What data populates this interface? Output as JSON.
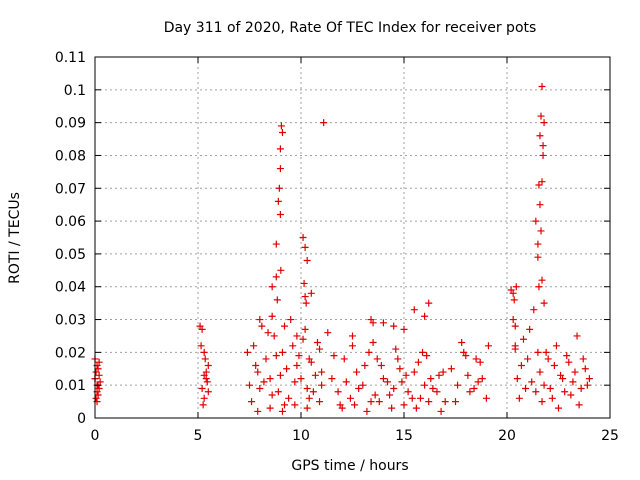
{
  "chart_data": {
    "type": "scatter",
    "title": "Day 311 of 2020, Rate Of TEC Index for receiver pots",
    "xlabel": "GPS time / hours",
    "ylabel": "ROTI / TECUs",
    "xlim": [
      0,
      25
    ],
    "ylim": [
      0,
      0.11
    ],
    "xticks": [
      0,
      5,
      10,
      15,
      20,
      25
    ],
    "xtick_labels": [
      "0",
      "5",
      "10",
      "15",
      "20",
      "25"
    ],
    "yticks": [
      0,
      0.01,
      0.02,
      0.03,
      0.04,
      0.05,
      0.06,
      0.07,
      0.08,
      0.09,
      0.1,
      0.11
    ],
    "ytick_labels": [
      "0",
      "0.01",
      "0.02",
      "0.03",
      "0.04",
      "0.05",
      "0.06",
      "0.07",
      "0.08",
      "0.09",
      "0.1",
      "0.11"
    ],
    "grid": true,
    "marker": "+",
    "color": "#e00000",
    "series": [
      {
        "name": "ROTI",
        "x": [
          0.0,
          0.1,
          0.2,
          0.05,
          0.15,
          0.25,
          0.0,
          0.1,
          0.2,
          0.05,
          0.15,
          0.1,
          0.2,
          0.0,
          0.1,
          0.15,
          5.1,
          5.2,
          5.3,
          5.4,
          5.5,
          5.2,
          5.3,
          5.4,
          5.15,
          5.35,
          5.45,
          5.25,
          5.3,
          5.5,
          7.5,
          7.7,
          7.9,
          8.1,
          8.3,
          8.5,
          8.7,
          8.9,
          9.1,
          9.3,
          9.5,
          9.7,
          9.9,
          10.1,
          10.3,
          10.5,
          10.7,
          10.9,
          7.6,
          7.8,
          8.0,
          8.2,
          8.4,
          8.6,
          8.8,
          9.0,
          9.2,
          9.4,
          9.6,
          9.8,
          10.0,
          10.2,
          10.4,
          10.6,
          10.8,
          11.0,
          7.4,
          8.0,
          8.6,
          9.2,
          9.8,
          10.4,
          11.0,
          7.9,
          8.5,
          9.1,
          9.7,
          10.3,
          10.9,
          8.6,
          8.8,
          8.9,
          9.0,
          9.0,
          9.05,
          9.1,
          8.95,
          9.0,
          9.02,
          8.85,
          8.8,
          10.1,
          10.2,
          10.3,
          10.2,
          10.15,
          10.25,
          10.5,
          11.1,
          11.3,
          11.5,
          11.8,
          12.1,
          12.4,
          12.7,
          13.0,
          13.3,
          13.6,
          13.9,
          14.2,
          14.5,
          14.8,
          15.1,
          15.4,
          15.7,
          16.0,
          16.3,
          16.6,
          16.9,
          11.6,
          11.9,
          12.2,
          12.5,
          12.8,
          13.1,
          13.4,
          13.7,
          14.0,
          14.3,
          14.6,
          14.9,
          15.2,
          15.5,
          15.8,
          16.1,
          16.4,
          16.7,
          17.0,
          12.0,
          12.6,
          13.2,
          13.8,
          14.4,
          15.0,
          15.6,
          16.2,
          16.8,
          13.5,
          14.7,
          15.9,
          13.4,
          13.5,
          14.5,
          15.0,
          15.5,
          16.0,
          16.2,
          14.0,
          12.5,
          17.3,
          17.6,
          17.9,
          18.2,
          18.5,
          18.8,
          19.1,
          17.5,
          17.8,
          18.1,
          18.4,
          18.7,
          19.0,
          18.0,
          18.6,
          20.2,
          20.3,
          20.4,
          20.5,
          20.6,
          20.7,
          20.8,
          20.9,
          21.0,
          21.1,
          21.2,
          21.3,
          21.4,
          21.5,
          21.6,
          21.8,
          22.0,
          22.2,
          22.4,
          22.6,
          22.8,
          23.0,
          23.2,
          23.4,
          23.6,
          23.8,
          24.0,
          21.7,
          21.9,
          22.1,
          22.3,
          22.5,
          22.7,
          22.9,
          23.1,
          23.3,
          23.5,
          23.7,
          23.9,
          20.3,
          20.35,
          20.4,
          20.4,
          20.45,
          21.4,
          21.5,
          21.55,
          21.6,
          21.65,
          21.7,
          21.75,
          21.8,
          21.6,
          21.7,
          21.5,
          21.65,
          21.75,
          21.55,
          21.7,
          21.8
        ],
        "y": [
          0.012,
          0.016,
          0.009,
          0.014,
          0.007,
          0.011,
          0.018,
          0.01,
          0.013,
          0.006,
          0.015,
          0.008,
          0.017,
          0.012,
          0.005,
          0.01,
          0.028,
          0.027,
          0.02,
          0.012,
          0.016,
          0.009,
          0.006,
          0.014,
          0.022,
          0.018,
          0.011,
          0.004,
          0.013,
          0.008,
          0.01,
          0.022,
          0.014,
          0.028,
          0.018,
          0.012,
          0.025,
          0.008,
          0.02,
          0.015,
          0.03,
          0.011,
          0.019,
          0.024,
          0.009,
          0.017,
          0.013,
          0.021,
          0.005,
          0.016,
          0.03,
          0.011,
          0.026,
          0.007,
          0.019,
          0.013,
          0.028,
          0.006,
          0.022,
          0.016,
          0.012,
          0.027,
          0.018,
          0.008,
          0.023,
          0.014,
          0.02,
          0.009,
          0.031,
          0.004,
          0.025,
          0.006,
          0.01,
          0.002,
          0.003,
          0.002,
          0.004,
          0.003,
          0.005,
          0.04,
          0.053,
          0.066,
          0.076,
          0.082,
          0.089,
          0.087,
          0.07,
          0.062,
          0.045,
          0.036,
          0.043,
          0.055,
          0.052,
          0.048,
          0.037,
          0.041,
          0.035,
          0.038,
          0.09,
          0.026,
          0.012,
          0.008,
          0.018,
          0.006,
          0.014,
          0.01,
          0.02,
          0.007,
          0.016,
          0.011,
          0.009,
          0.015,
          0.013,
          0.006,
          0.017,
          0.01,
          0.012,
          0.008,
          0.014,
          0.019,
          0.004,
          0.011,
          0.022,
          0.009,
          0.016,
          0.005,
          0.018,
          0.012,
          0.007,
          0.021,
          0.011,
          0.008,
          0.014,
          0.006,
          0.019,
          0.009,
          0.013,
          0.005,
          0.003,
          0.004,
          0.002,
          0.005,
          0.003,
          0.004,
          0.003,
          0.005,
          0.002,
          0.023,
          0.018,
          0.02,
          0.03,
          0.029,
          0.028,
          0.027,
          0.033,
          0.031,
          0.035,
          0.029,
          0.025,
          0.015,
          0.01,
          0.02,
          0.008,
          0.018,
          0.012,
          0.022,
          0.005,
          0.023,
          0.013,
          0.009,
          0.017,
          0.006,
          0.019,
          0.011,
          0.039,
          0.03,
          0.021,
          0.012,
          0.006,
          0.016,
          0.024,
          0.009,
          0.018,
          0.027,
          0.011,
          0.033,
          0.008,
          0.02,
          0.014,
          0.01,
          0.018,
          0.006,
          0.022,
          0.013,
          0.008,
          0.017,
          0.011,
          0.025,
          0.009,
          0.015,
          0.012,
          0.005,
          0.02,
          0.009,
          0.016,
          0.003,
          0.012,
          0.019,
          0.007,
          0.014,
          0.004,
          0.018,
          0.01,
          0.038,
          0.036,
          0.028,
          0.022,
          0.04,
          0.06,
          0.053,
          0.071,
          0.086,
          0.092,
          0.101,
          0.083,
          0.09,
          0.065,
          0.072,
          0.049,
          0.057,
          0.08,
          0.04,
          0.042,
          0.035
        ]
      }
    ]
  }
}
